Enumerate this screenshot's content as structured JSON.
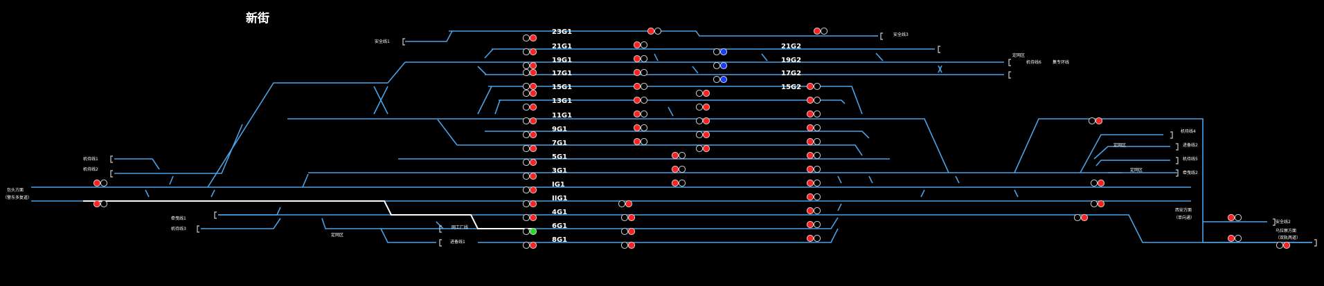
{
  "station": {
    "title": "新街"
  },
  "colors": {
    "track": "#4aa3e8",
    "route": "#ffffff",
    "red": "#ff2020",
    "green": "#22dd22",
    "blue": "#1a3cff",
    "dim": "#000000",
    "ring": "#cfcfcf",
    "text": "#ffffff"
  },
  "tracks": [
    {
      "id": "23G1",
      "label": "23G1"
    },
    {
      "id": "21G1",
      "label": "21G1"
    },
    {
      "id": "21G2",
      "label": "21G2"
    },
    {
      "id": "19G1",
      "label": "19G1"
    },
    {
      "id": "19G2",
      "label": "19G2"
    },
    {
      "id": "17G1",
      "label": "17G1"
    },
    {
      "id": "17G2",
      "label": "17G2"
    },
    {
      "id": "15G1",
      "label": "15G1"
    },
    {
      "id": "15G2",
      "label": "15G2"
    },
    {
      "id": "13G1",
      "label": "13G1"
    },
    {
      "id": "11G1",
      "label": "11G1"
    },
    {
      "id": "9G1",
      "label": "9G1"
    },
    {
      "id": "7G1",
      "label": "7G1"
    },
    {
      "id": "5G1",
      "label": "5G1"
    },
    {
      "id": "3G1",
      "label": "3G1"
    },
    {
      "id": "IG1",
      "label": "IG1"
    },
    {
      "id": "IIG1",
      "label": "IIG1"
    },
    {
      "id": "4G1",
      "label": "4G1"
    },
    {
      "id": "6G1",
      "label": "6G1"
    },
    {
      "id": "8G1",
      "label": "8G1"
    }
  ],
  "side_labels": {
    "safety1": "安全线1",
    "safety3": "安全线3",
    "safety2": "安全线2",
    "dingwang_top": "定网区",
    "machine_line6": "机待线6",
    "accompany_line": "集专环线",
    "machine1": "机待线1",
    "machine2": "机待线2",
    "machine3": "机待线3",
    "machine4": "机待线4",
    "machine5": "机待线5",
    "baotou_dir": "包头方面",
    "baotou_dir_sub": "（警东多复道）",
    "shunting1": "牵曳线1",
    "shunting2": "牵曳线2",
    "dingwang_bottom": "定网区",
    "dingwang_right1": "定网区",
    "dingwang_right2": "定网区",
    "factory_line": "网工厂线",
    "approach1": "进备线1",
    "approach2": "进备线2",
    "xian_dir": "西安方面",
    "xian_dir_sub": "（单向通）",
    "wucha_dir": "乌拉察方面",
    "wucha_dir_sub": "（双轨两道）"
  }
}
